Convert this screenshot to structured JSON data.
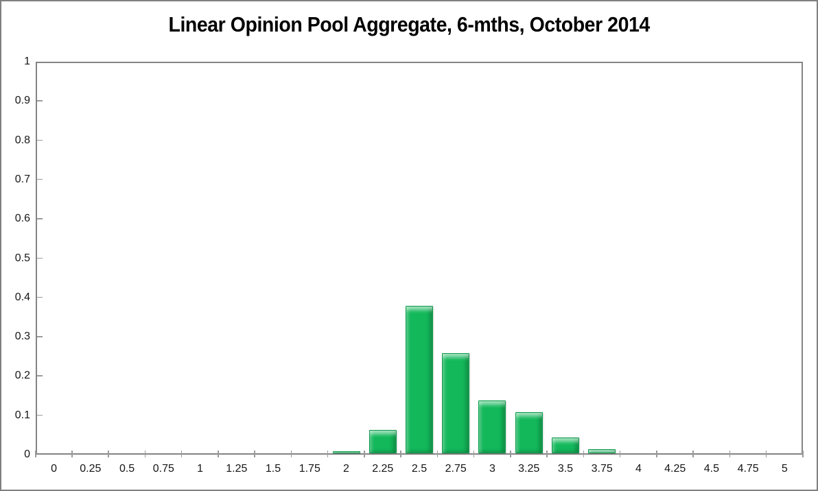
{
  "chart_data": {
    "type": "bar",
    "title": "Linear Opinion Pool Aggregate, 6-mths, October 2014",
    "categories": [
      "0",
      "0.25",
      "0.5",
      "0.75",
      "1",
      "1.25",
      "1.5",
      "1.75",
      "2",
      "2.25",
      "2.5",
      "2.75",
      "3",
      "3.25",
      "3.5",
      "3.75",
      "4",
      "4.25",
      "4.5",
      "4.75",
      "5"
    ],
    "values": [
      0,
      0,
      0,
      0,
      0,
      0,
      0,
      0,
      0.005,
      0.06,
      0.375,
      0.255,
      0.135,
      0.105,
      0.04,
      0.01,
      0,
      0,
      0,
      0,
      0
    ],
    "xlabel": "",
    "ylabel": "",
    "ylim": [
      0,
      1
    ],
    "yticks": [
      "0",
      "0.1",
      "0.2",
      "0.3",
      "0.4",
      "0.5",
      "0.6",
      "0.7",
      "0.8",
      "0.9",
      "1"
    ],
    "grid": false,
    "legend": "none",
    "colors": {
      "bar_fill": "#13b85b",
      "bar_border": "#0a9a49",
      "bar_highlight": "#4bd983",
      "plot_border": "#848484",
      "tick": "#9a9a9a",
      "text": "#000000",
      "background": "#ffffff",
      "outer_border": "#7f7f7f"
    }
  }
}
